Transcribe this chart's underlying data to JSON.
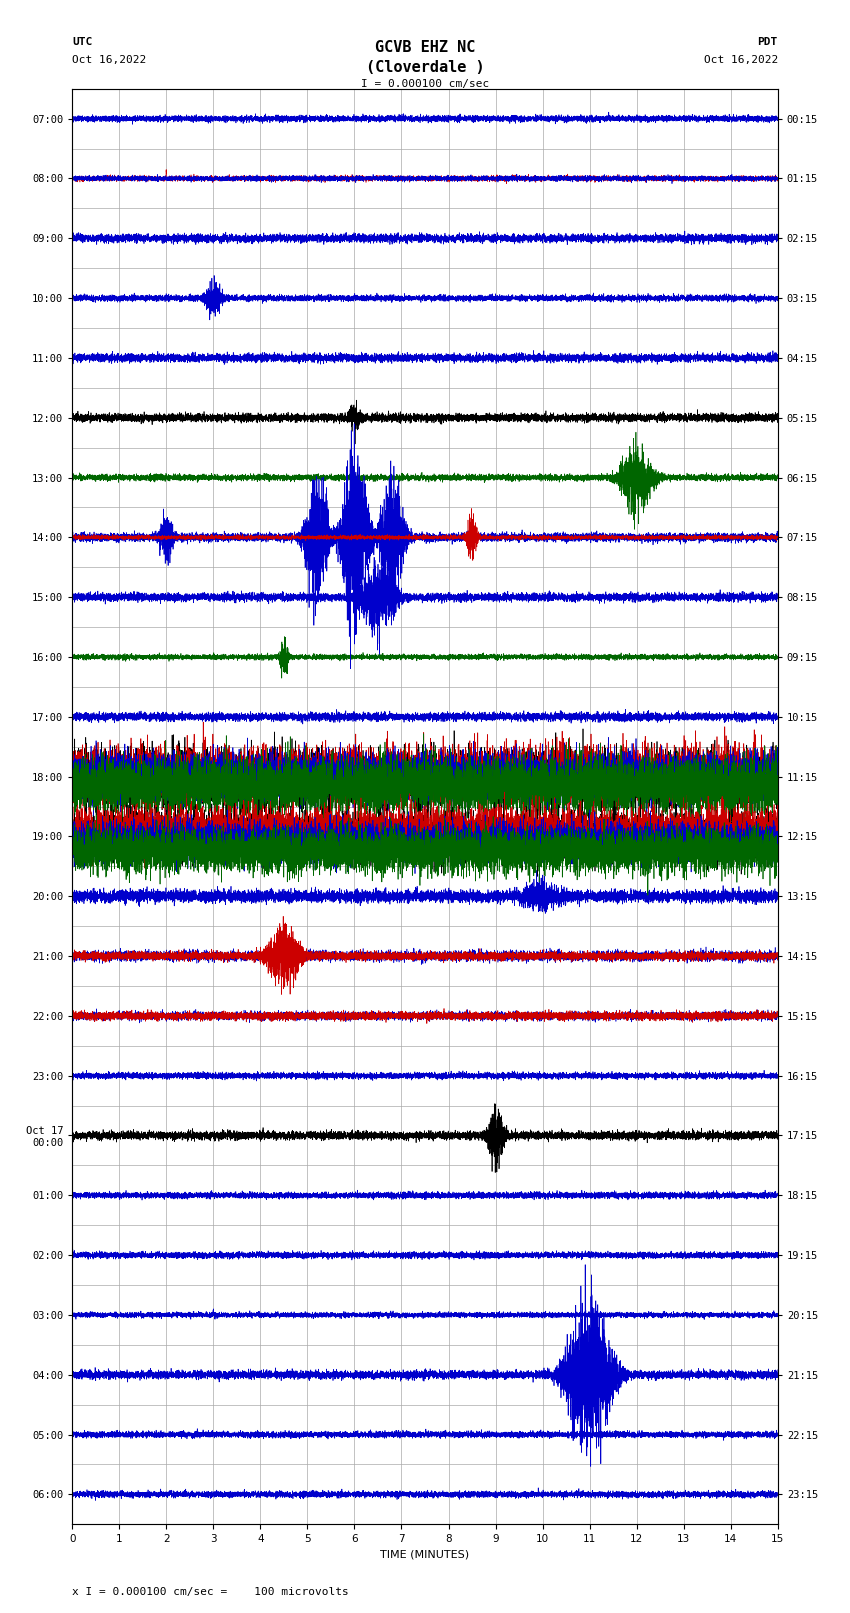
{
  "title_line1": "GCVB EHZ NC",
  "title_line2": "(Cloverdale )",
  "scale_label": "I = 0.000100 cm/sec",
  "utc_label": "UTC",
  "utc_date": "Oct 16,2022",
  "pdt_label": "PDT",
  "pdt_date": "Oct 16,2022",
  "xlabel": "TIME (MINUTES)",
  "footer_label": "x I = 0.000100 cm/sec =    100 microvolts",
  "xlim": [
    0,
    15
  ],
  "xticks": [
    0,
    1,
    2,
    3,
    4,
    5,
    6,
    7,
    8,
    9,
    10,
    11,
    12,
    13,
    14,
    15
  ],
  "left_times": [
    "07:00",
    "08:00",
    "09:00",
    "10:00",
    "11:00",
    "12:00",
    "13:00",
    "14:00",
    "15:00",
    "16:00",
    "17:00",
    "18:00",
    "19:00",
    "20:00",
    "21:00",
    "22:00",
    "23:00",
    "Oct 17\n00:00",
    "01:00",
    "02:00",
    "03:00",
    "04:00",
    "05:00",
    "06:00"
  ],
  "right_times": [
    "00:15",
    "01:15",
    "02:15",
    "03:15",
    "04:15",
    "05:15",
    "06:15",
    "07:15",
    "08:15",
    "09:15",
    "10:15",
    "11:15",
    "12:15",
    "13:15",
    "14:15",
    "15:15",
    "16:15",
    "17:15",
    "18:15",
    "19:15",
    "20:15",
    "21:15",
    "22:15",
    "23:15"
  ],
  "n_rows": 24,
  "bg_color": "#ffffff",
  "grid_color": "#aaaaaa",
  "trace_colors": {
    "normal": "#0000cc",
    "burst1_black": "#000000",
    "burst1_red": "#cc0000",
    "burst1_blue": "#0000cc",
    "burst1_green": "#006600",
    "red": "#cc0000",
    "green": "#006600",
    "black": "#000000"
  },
  "title_fontsize": 11,
  "label_fontsize": 8,
  "tick_fontsize": 7.5
}
